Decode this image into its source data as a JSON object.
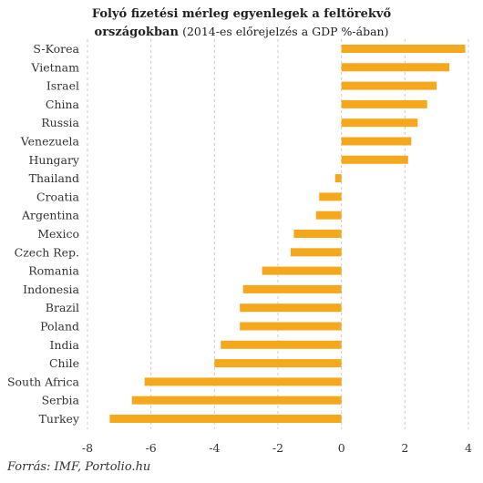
{
  "title": {
    "line1": "Folyó fizetési mérleg egyenlegek a feltörekvő",
    "line2_bold": "országokban",
    "line2_normal": "(2014-es előrejelzés a GDP %-ában)"
  },
  "source": "Forrás: IMF, Portolio.hu",
  "colors": {
    "bar": "#F5A81C",
    "grid": "#cccccc",
    "text": "#333333"
  },
  "chart_data": {
    "type": "bar",
    "orientation": "horizontal",
    "categories": [
      "S-Korea",
      "Vietnam",
      "Israel",
      "China",
      "Russia",
      "Venezuela",
      "Hungary",
      "Thailand",
      "Croatia",
      "Argentina",
      "Mexico",
      "Czech Rep.",
      "Romania",
      "Indonesia",
      "Brazil",
      "Poland",
      "India",
      "Chile",
      "South Africa",
      "Serbia",
      "Turkey"
    ],
    "values": [
      3.9,
      3.4,
      3.0,
      2.7,
      2.4,
      2.2,
      2.1,
      -0.2,
      -0.7,
      -0.8,
      -1.5,
      -1.6,
      -2.5,
      -3.1,
      -3.2,
      -3.2,
      -3.8,
      -4.0,
      -6.2,
      -6.6,
      -7.3
    ],
    "xlim": [
      -8,
      4
    ],
    "xticks": [
      -8,
      -6,
      -4,
      -2,
      0,
      2,
      4
    ],
    "grid": true
  }
}
